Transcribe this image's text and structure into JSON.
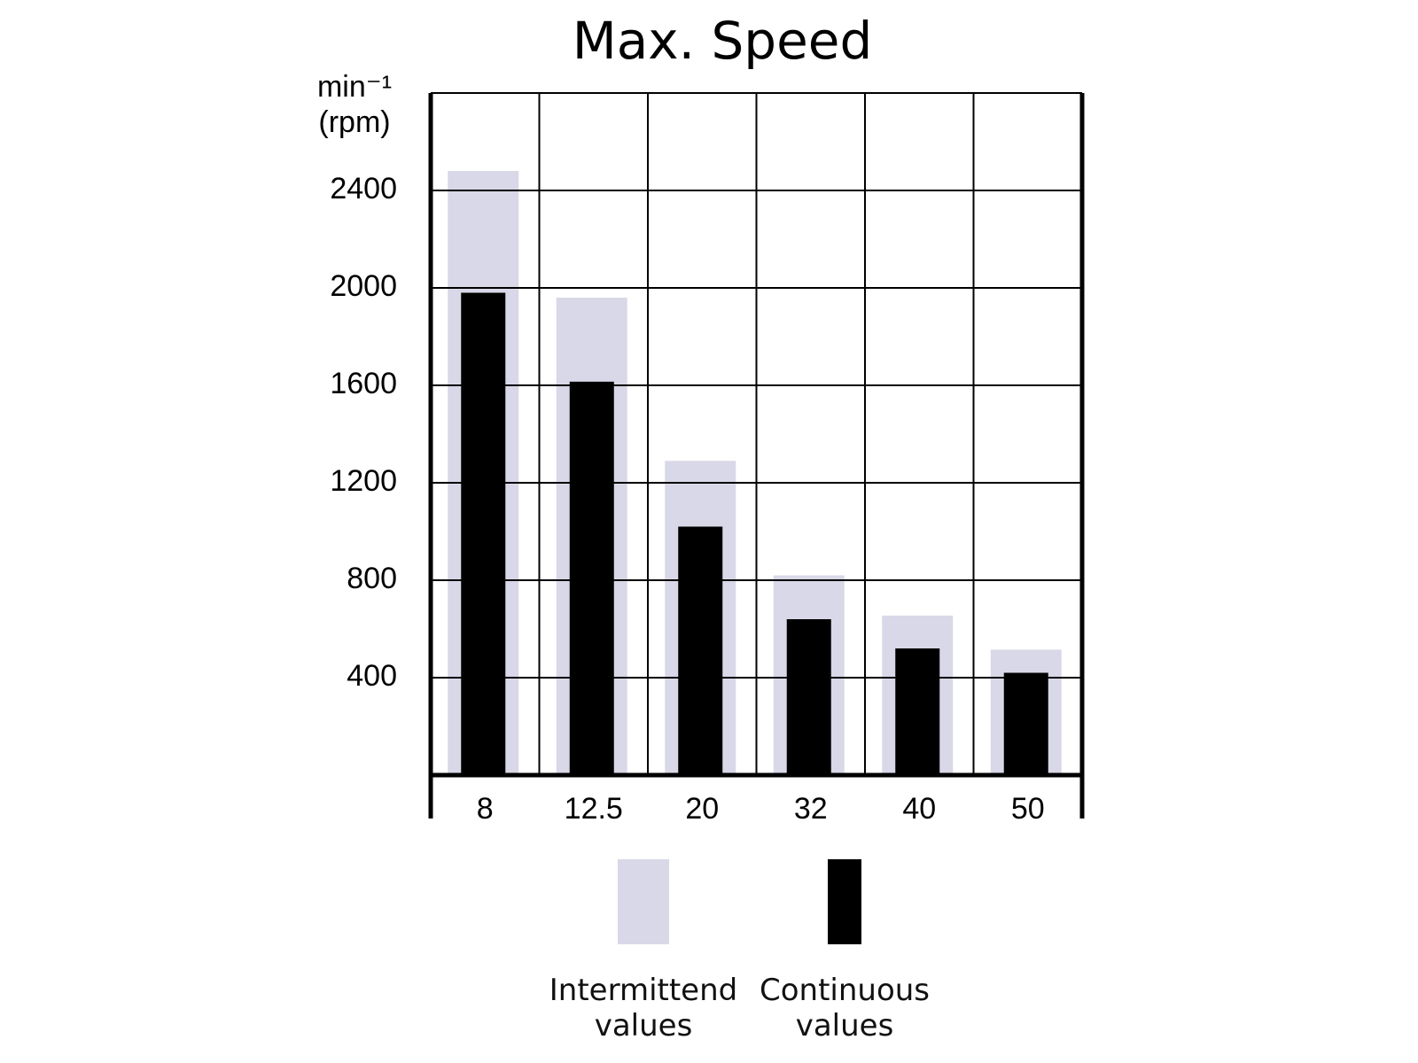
{
  "chart_data": {
    "type": "bar",
    "title": "Max. Speed",
    "y_label_lines": [
      "min⁻¹",
      "(rpm)"
    ],
    "categories": [
      "8",
      "12.5",
      "20",
      "32",
      "40",
      "50"
    ],
    "series": [
      {
        "name": "Intermittend values",
        "color": "#d8d8e8",
        "values": [
          2480,
          1960,
          1290,
          820,
          655,
          515
        ]
      },
      {
        "name": "Continuous values",
        "color": "#000000",
        "values": [
          1980,
          1615,
          1020,
          640,
          520,
          420
        ]
      }
    ],
    "ylim": [
      0,
      2800
    ],
    "yticks": [
      400,
      800,
      1200,
      1600,
      2000,
      2400
    ],
    "grid": true
  }
}
